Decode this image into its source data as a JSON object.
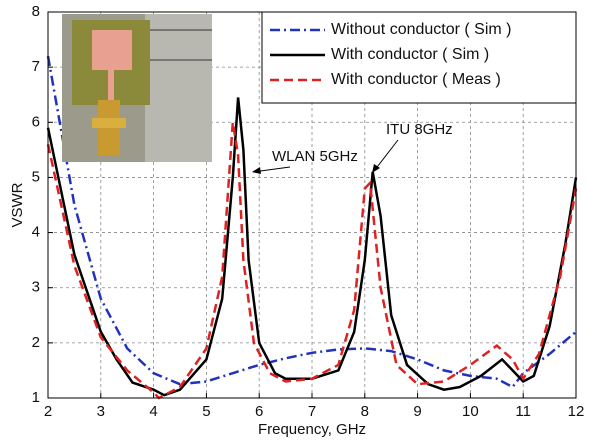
{
  "chart_data": {
    "type": "line",
    "xlabel": "Frequency, GHz",
    "ylabel": "VSWR",
    "xlim": [
      2,
      12
    ],
    "ylim": [
      1,
      8
    ],
    "xticks": [
      2,
      3,
      4,
      5,
      6,
      7,
      8,
      9,
      10,
      11,
      12
    ],
    "yticks": [
      1,
      2,
      3,
      4,
      5,
      6,
      7,
      8
    ],
    "grid": true,
    "legend": "upper right",
    "annotations": [
      "WLAN 5GHz",
      "ITU 8GHz"
    ],
    "series": [
      {
        "name": "Without conductor ( Sim )",
        "color": "#2233bb",
        "style": "dashdot",
        "x": [
          2,
          2.5,
          3,
          3.5,
          4,
          4.5,
          5,
          5.5,
          6,
          6.5,
          7,
          7.5,
          8,
          8.5,
          9,
          9.5,
          10,
          10.5,
          10.8,
          11,
          11.5,
          12
        ],
        "values": [
          7.2,
          4.5,
          2.8,
          1.9,
          1.45,
          1.25,
          1.3,
          1.45,
          1.6,
          1.72,
          1.82,
          1.88,
          1.9,
          1.85,
          1.7,
          1.5,
          1.4,
          1.35,
          1.2,
          1.45,
          1.8,
          2.2
        ]
      },
      {
        "name": "With conductor ( Sim )",
        "color": "#000000",
        "style": "solid",
        "x": [
          2,
          2.5,
          3,
          3.3,
          3.6,
          4,
          4.2,
          4.5,
          5,
          5.3,
          5.5,
          5.6,
          5.7,
          5.8,
          6,
          6.3,
          6.5,
          7,
          7.5,
          7.8,
          8,
          8.15,
          8.3,
          8.5,
          8.8,
          9.2,
          9.5,
          9.8,
          10.2,
          10.6,
          10.8,
          11,
          11.2,
          11.5,
          11.8,
          12
        ],
        "values": [
          5.9,
          3.6,
          2.2,
          1.7,
          1.28,
          1.15,
          1.05,
          1.15,
          1.7,
          2.8,
          5.0,
          6.45,
          5.5,
          3.5,
          2.0,
          1.45,
          1.35,
          1.35,
          1.5,
          2.2,
          3.5,
          5.1,
          4.3,
          2.5,
          1.6,
          1.25,
          1.15,
          1.2,
          1.4,
          1.7,
          1.5,
          1.3,
          1.4,
          2.3,
          3.8,
          5.0
        ]
      },
      {
        "name": "With conductor ( Meas )",
        "color": "#dd2222",
        "style": "dashed",
        "x": [
          2,
          2.5,
          3,
          3.5,
          4,
          4.1,
          4.5,
          5,
          5.3,
          5.5,
          5.6,
          5.7,
          5.9,
          6.2,
          6.5,
          7,
          7.5,
          7.8,
          8,
          8.1,
          8.3,
          8.6,
          9,
          9.5,
          10,
          10.5,
          10.8,
          11,
          11.3,
          11.7,
          12
        ],
        "values": [
          5.6,
          3.4,
          2.1,
          1.5,
          1.1,
          1.0,
          1.2,
          1.9,
          3.2,
          6.0,
          5.4,
          3.5,
          2.0,
          1.45,
          1.3,
          1.35,
          1.6,
          2.6,
          4.8,
          4.9,
          3.0,
          1.6,
          1.25,
          1.3,
          1.6,
          1.95,
          1.7,
          1.35,
          1.8,
          3.2,
          4.8
        ]
      }
    ]
  }
}
